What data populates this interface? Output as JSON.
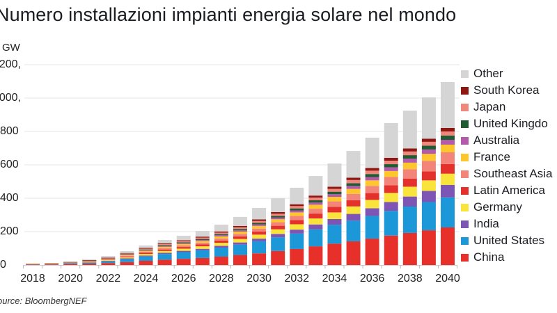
{
  "chart_data": {
    "type": "bar",
    "stacked": true,
    "title": "Numero installazioni impianti energia solare nel mondo",
    "ylabel": "GW",
    "xlabel": "",
    "source": "ource: BloombergNEF",
    "ylim": [
      0,
      1200
    ],
    "yticks": [
      0,
      200,
      400,
      600,
      800,
      1000,
      1200
    ],
    "ytick_labels": [
      "0",
      "200",
      "400",
      "600",
      "800",
      ",000",
      ",200"
    ],
    "xtick_labels": [
      "2018",
      "2020",
      "2022",
      "2024",
      "2026",
      "2028",
      "2030",
      "2032",
      "2034",
      "2036",
      "2038",
      "2040"
    ],
    "grid": "horizontal",
    "legend_position": "right",
    "categories": [
      "2018",
      "2019",
      "2020",
      "2021",
      "2022",
      "2023",
      "2024",
      "2025",
      "2026",
      "2027",
      "2028",
      "2029",
      "2030",
      "2031",
      "2032",
      "2033",
      "2034",
      "2035",
      "2036",
      "2037",
      "2038",
      "2039",
      "2040"
    ],
    "series": [
      {
        "name": "China",
        "color": "#e8302a",
        "values": [
          3,
          3,
          5,
          8,
          12,
          18,
          25,
          32,
          37,
          42,
          50,
          60,
          70,
          84,
          96,
          112,
          128,
          142,
          158,
          176,
          192,
          208,
          225
        ]
      },
      {
        "name": "United States",
        "color": "#1c98d8",
        "values": [
          2,
          2,
          4,
          6,
          10,
          17,
          26,
          34,
          40,
          46,
          54,
          62,
          72,
          82,
          92,
          102,
          113,
          124,
          136,
          148,
          158,
          169,
          180
        ]
      },
      {
        "name": "India",
        "color": "#7d55b5",
        "values": [
          1,
          1,
          1,
          2,
          3,
          5,
          6,
          7,
          8,
          9,
          11,
          13,
          16,
          20,
          24,
          29,
          34,
          40,
          46,
          53,
          60,
          67,
          75
        ]
      },
      {
        "name": "Germany",
        "color": "#f8e43a",
        "values": [
          1,
          1,
          2,
          3,
          4,
          6,
          9,
          11,
          13,
          15,
          18,
          21,
          24,
          28,
          32,
          36,
          40,
          45,
          50,
          55,
          59,
          63,
          67
        ]
      },
      {
        "name": "Latin America",
        "color": "#e4312b",
        "values": [
          0,
          1,
          1,
          2,
          3,
          5,
          7,
          9,
          10,
          11,
          13,
          15,
          18,
          21,
          25,
          29,
          33,
          37,
          41,
          45,
          49,
          54,
          58
        ]
      },
      {
        "name": "Southeast Asia",
        "color": "#f2847a",
        "values": [
          0,
          0,
          1,
          2,
          3,
          4,
          6,
          8,
          9,
          11,
          13,
          15,
          18,
          21,
          25,
          29,
          33,
          38,
          43,
          50,
          56,
          63,
          70
        ]
      },
      {
        "name": "France",
        "color": "#fcc62c",
        "values": [
          1,
          1,
          1,
          2,
          3,
          4,
          6,
          8,
          9,
          10,
          12,
          14,
          16,
          18,
          21,
          24,
          27,
          30,
          33,
          36,
          39,
          42,
          46
        ]
      },
      {
        "name": "Australia",
        "color": "#b35aab",
        "values": [
          0,
          0,
          1,
          1,
          2,
          3,
          4,
          5,
          5,
          6,
          7,
          8,
          9,
          10,
          12,
          14,
          16,
          18,
          20,
          22,
          24,
          26,
          29
        ]
      },
      {
        "name": "United Kingdom",
        "color": "#1f5c31",
        "values": [
          0,
          0,
          1,
          1,
          2,
          3,
          4,
          5,
          5,
          6,
          7,
          8,
          9,
          10,
          12,
          13,
          15,
          16,
          18,
          19,
          21,
          23,
          25
        ]
      },
      {
        "name": "Japan",
        "color": "#f0877d",
        "values": [
          1,
          1,
          1,
          2,
          3,
          4,
          5,
          6,
          7,
          8,
          9,
          10,
          12,
          13,
          14,
          16,
          17,
          19,
          20,
          21,
          22,
          23,
          25
        ]
      },
      {
        "name": "South Korea",
        "color": "#8e1712",
        "values": [
          0,
          1,
          1,
          1,
          2,
          3,
          4,
          5,
          5,
          6,
          7,
          8,
          9,
          10,
          11,
          12,
          13,
          14,
          16,
          17,
          18,
          19,
          21
        ]
      },
      {
        "name": "Other",
        "color": "#d5d5d5",
        "values": [
          1,
          1,
          1,
          3,
          6,
          11,
          15,
          20,
          27,
          34,
          41,
          54,
          69,
          83,
          99,
          117,
          139,
          160,
          182,
          208,
          227,
          247,
          275
        ]
      }
    ],
    "legend_order": [
      "Other",
      "South Korea",
      "Japan",
      "United Kingdom",
      "Australia",
      "France",
      "Southeast Asia",
      "Latin America",
      "Germany",
      "India",
      "United States",
      "China"
    ],
    "legend_labels": [
      "Other",
      "South Korea",
      "Japan",
      "United Kingdo",
      "Australia",
      "France",
      "Southeast Asia",
      "Latin America",
      "Germany",
      "India",
      "United States",
      "China"
    ]
  }
}
